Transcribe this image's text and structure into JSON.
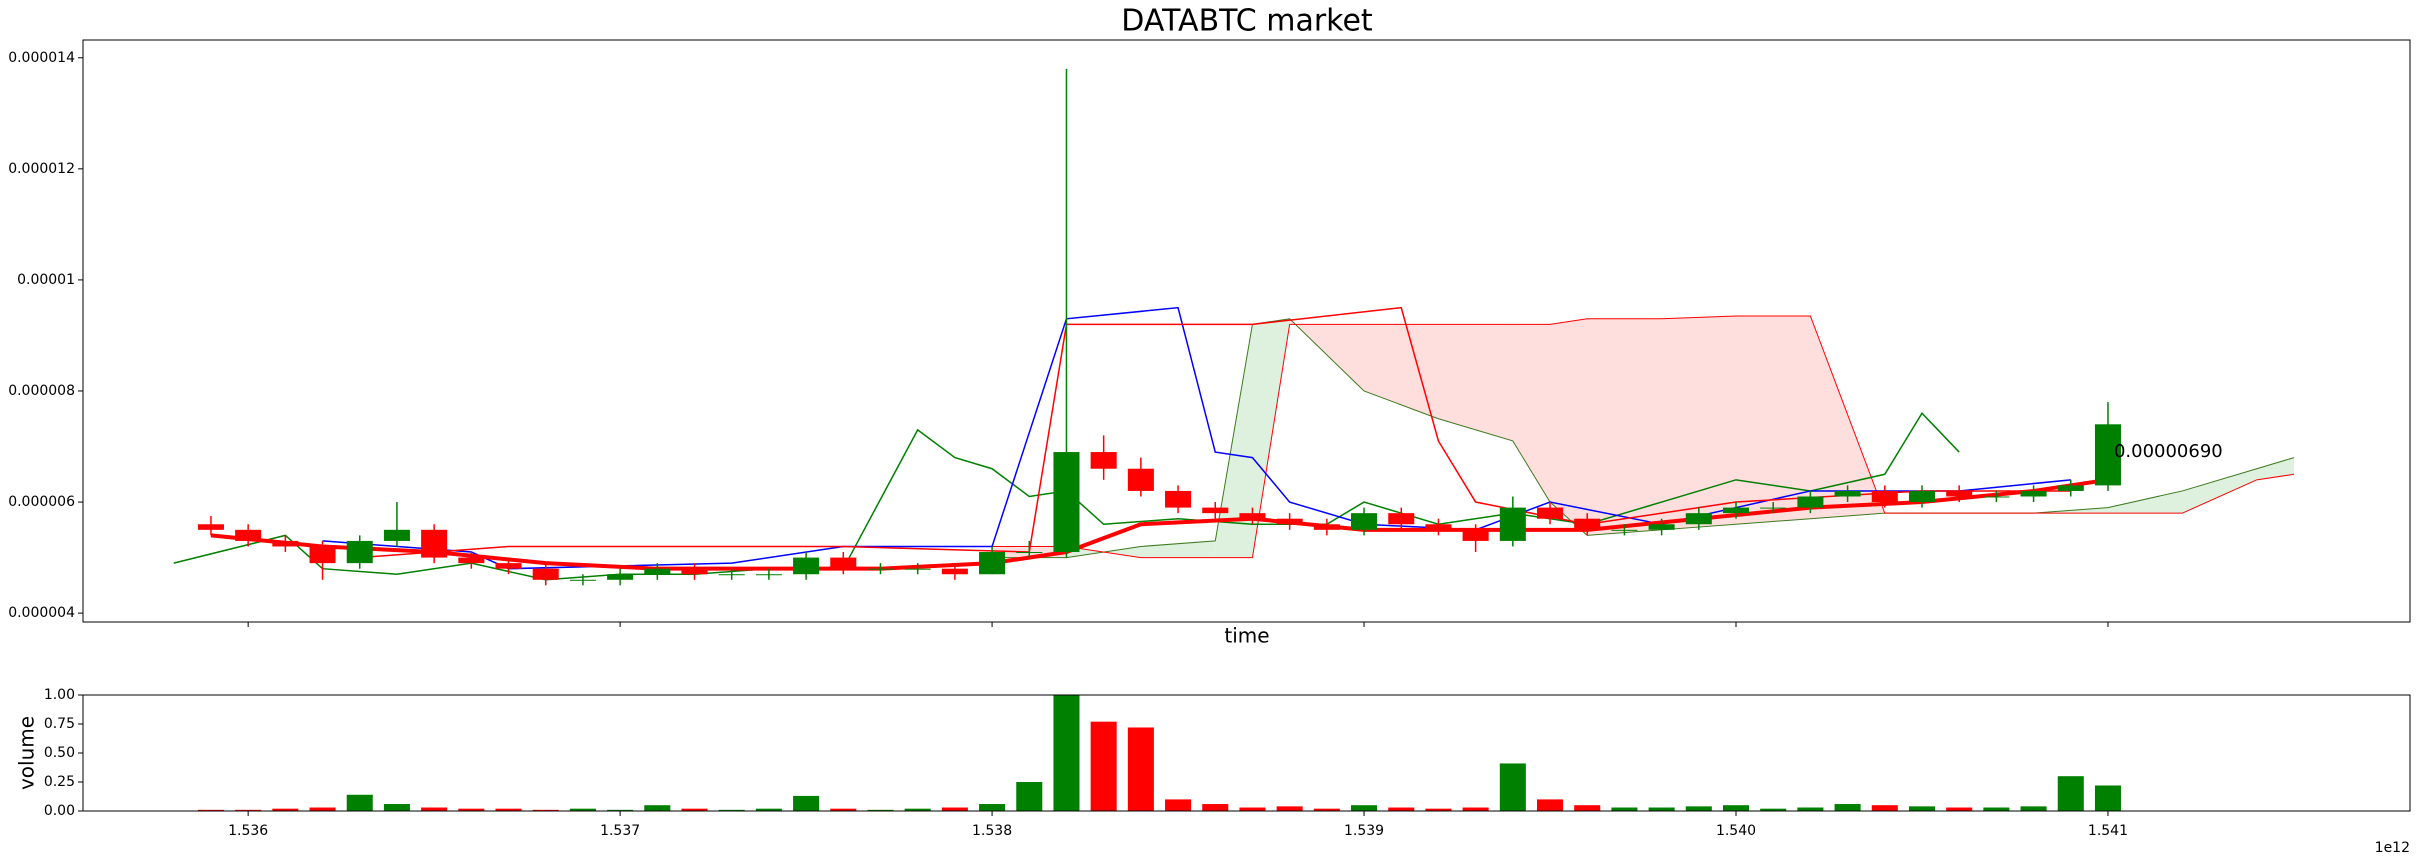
{
  "chart_data": {
    "type": "candlestick",
    "title": "DATABTC market",
    "xlabel": "time",
    "ylabel_volume": "volume",
    "x_offset_label": "1e12",
    "annotation": "0.00000690",
    "up_color": "#008000",
    "down_color": "#ff0000",
    "xlim": [
      1.535556,
      1.541812
    ],
    "xticks": [
      1.536,
      1.537,
      1.538,
      1.539,
      {
        "value": 1.54,
        "label": "1.540"
      },
      1.541
    ],
    "ylim": [
      3.84e-06,
      1.432e-05
    ],
    "yticks": [
      4e-06,
      6e-06,
      8e-06,
      1e-05,
      1.2e-05,
      1.4e-05
    ],
    "volume_ylim": [
      0,
      1
    ],
    "volume_yticks": [
      {
        "value": 0,
        "label": "0.00"
      },
      {
        "value": 0.25,
        "label": "0.25"
      },
      {
        "value": 0.5,
        "label": "0.50"
      },
      {
        "value": 0.75,
        "label": "0.75"
      },
      {
        "value": 1,
        "label": "1.00"
      }
    ],
    "x": [
      1.5359,
      1.536,
      1.5361,
      1.5362,
      1.5363,
      1.5364,
      1.5365,
      1.5366,
      1.5367,
      1.5368,
      1.5369,
      1.537,
      1.5371,
      1.5372,
      1.5373,
      1.5374,
      1.5375,
      1.5376,
      1.5377,
      1.5378,
      1.5379,
      1.538,
      1.5381,
      1.5382,
      1.5383,
      1.5384,
      1.5385,
      1.5386,
      1.5387,
      1.5388,
      1.5389,
      1.539,
      1.5391,
      1.5392,
      1.5393,
      1.5394,
      1.5395,
      1.5396,
      1.5397,
      1.5398,
      1.5399,
      1.54,
      1.5401,
      1.5402,
      1.5403,
      1.5404,
      1.5405,
      1.5406,
      1.5407,
      1.5408,
      1.5409,
      1.541
    ],
    "open": [
      5.6e-06,
      5.5e-06,
      5.3e-06,
      5.2e-06,
      4.9e-06,
      5.3e-06,
      5.5e-06,
      5e-06,
      4.9e-06,
      4.8e-06,
      4.6e-06,
      4.6e-06,
      4.7e-06,
      4.8e-06,
      4.7e-06,
      4.7e-06,
      4.7e-06,
      5e-06,
      4.8e-06,
      4.8e-06,
      4.8e-06,
      4.7e-06,
      5.1e-06,
      5.1e-06,
      6.9e-06,
      6.6e-06,
      6.2e-06,
      5.9e-06,
      5.8e-06,
      5.7e-06,
      5.6e-06,
      5.5e-06,
      5.8e-06,
      5.6e-06,
      5.5e-06,
      5.3e-06,
      5.9e-06,
      5.7e-06,
      5.5e-06,
      5.5e-06,
      5.6e-06,
      5.8e-06,
      5.9e-06,
      5.9e-06,
      6.1e-06,
      6.2e-06,
      6e-06,
      6.2e-06,
      6.1e-06,
      6.1e-06,
      6.2e-06,
      6.3e-06
    ],
    "high": [
      5.75e-06,
      5.6e-06,
      5.4e-06,
      5.3e-06,
      5.4e-06,
      6e-06,
      5.6e-06,
      5.1e-06,
      5e-06,
      4.9e-06,
      4.7e-06,
      4.8e-06,
      4.9e-06,
      4.9e-06,
      4.8e-06,
      4.8e-06,
      5.1e-06,
      5.1e-06,
      4.9e-06,
      4.9e-06,
      4.9e-06,
      5.2e-06,
      5.3e-06,
      1.38e-05,
      7.2e-06,
      6.8e-06,
      6.3e-06,
      6e-06,
      5.9e-06,
      5.8e-06,
      5.7e-06,
      5.9e-06,
      5.9e-06,
      5.7e-06,
      5.6e-06,
      6.1e-06,
      6e-06,
      5.8e-06,
      5.6e-06,
      5.7e-06,
      5.9e-06,
      6e-06,
      6e-06,
      6.2e-06,
      6.3e-06,
      6.3e-06,
      6.3e-06,
      6.3e-06,
      6.2e-06,
      6.3e-06,
      6.4e-06,
      7.8e-06
    ],
    "low": [
      5.4e-06,
      5.2e-06,
      5.1e-06,
      4.6e-06,
      4.8e-06,
      5.2e-06,
      4.9e-06,
      4.8e-06,
      4.7e-06,
      4.5e-06,
      4.5e-06,
      4.5e-06,
      4.6e-06,
      4.6e-06,
      4.6e-06,
      4.6e-06,
      4.6e-06,
      4.7e-06,
      4.7e-06,
      4.7e-06,
      4.6e-06,
      4.7e-06,
      5e-06,
      5e-06,
      6.4e-06,
      6.1e-06,
      5.8e-06,
      5.7e-06,
      5.6e-06,
      5.5e-06,
      5.4e-06,
      5.4e-06,
      5.5e-06,
      5.4e-06,
      5.1e-06,
      5.2e-06,
      5.6e-06,
      5.4e-06,
      5.4e-06,
      5.4e-06,
      5.5e-06,
      5.7e-06,
      5.8e-06,
      5.8e-06,
      6e-06,
      5.9e-06,
      5.9e-06,
      6e-06,
      6e-06,
      6e-06,
      6.1e-06,
      6.2e-06
    ],
    "close": [
      5.5e-06,
      5.3e-06,
      5.2e-06,
      4.9e-06,
      5.3e-06,
      5.5e-06,
      5e-06,
      4.9e-06,
      4.8e-06,
      4.6e-06,
      4.6e-06,
      4.7e-06,
      4.8e-06,
      4.7e-06,
      4.7e-06,
      4.7e-06,
      5e-06,
      4.8e-06,
      4.8e-06,
      4.8e-06,
      4.7e-06,
      5.1e-06,
      5.1e-06,
      6.9e-06,
      6.6e-06,
      6.2e-06,
      5.9e-06,
      5.8e-06,
      5.7e-06,
      5.6e-06,
      5.5e-06,
      5.8e-06,
      5.6e-06,
      5.5e-06,
      5.3e-06,
      5.9e-06,
      5.7e-06,
      5.5e-06,
      5.5e-06,
      5.6e-06,
      5.8e-06,
      5.9e-06,
      5.9e-06,
      6.1e-06,
      6.2e-06,
      6e-06,
      6.2e-06,
      6.1e-06,
      6.1e-06,
      6.2e-06,
      6.3e-06,
      7.4e-06
    ],
    "volume": [
      0.01,
      0.01,
      0.02,
      0.03,
      0.14,
      0.06,
      0.03,
      0.02,
      0.02,
      0.01,
      0.02,
      0.01,
      0.05,
      0.02,
      0.01,
      0.02,
      0.13,
      0.02,
      0.01,
      0.02,
      0.03,
      0.06,
      0.25,
      1.0,
      0.77,
      0.72,
      0.1,
      0.06,
      0.03,
      0.04,
      0.02,
      0.05,
      0.03,
      0.02,
      0.03,
      0.41,
      0.1,
      0.05,
      0.03,
      0.03,
      0.04,
      0.05,
      0.02,
      0.03,
      0.06,
      0.05,
      0.04,
      0.03,
      0.03,
      0.04,
      0.3,
      0.22
    ],
    "series": [
      {
        "color": "#008000",
        "x": [
          1.5358,
          1.5361,
          1.5362,
          1.5364,
          1.5366,
          1.5368,
          1.537,
          1.5372,
          1.5374,
          1.5376,
          1.5378,
          1.5379,
          1.538,
          1.5381,
          1.5382,
          1.5383,
          1.5385,
          1.5387,
          1.5389,
          1.539,
          1.5392,
          1.5394,
          1.5396,
          1.5398,
          1.54,
          1.5402,
          1.5404,
          1.5405,
          1.5406
        ],
        "values": [
          4.9e-06,
          5.4e-06,
          4.8e-06,
          4.7e-06,
          4.9e-06,
          4.6e-06,
          4.7e-06,
          4.7e-06,
          4.8e-06,
          4.8e-06,
          7.3e-06,
          6.8e-06,
          6.6e-06,
          6.1e-06,
          6.2e-06,
          5.6e-06,
          5.7e-06,
          5.6e-06,
          5.6e-06,
          6e-06,
          5.6e-06,
          5.8e-06,
          5.6e-06,
          6e-06,
          6.4e-06,
          6.2e-06,
          6.5e-06,
          7.6e-06,
          6.9e-06
        ]
      },
      {
        "color": "#0000ff",
        "x": [
          1.5362,
          1.5366,
          1.5367,
          1.5373,
          1.5376,
          1.538,
          1.5382,
          1.5385,
          1.5386,
          1.5387,
          1.5388,
          1.539,
          1.5393,
          1.5395,
          1.5398,
          1.5402,
          1.5406,
          1.5409
        ],
        "values": [
          5.3e-06,
          5.1e-06,
          4.8e-06,
          4.9e-06,
          5.2e-06,
          5.2e-06,
          9.3e-06,
          9.5e-06,
          6.9e-06,
          6.8e-06,
          6e-06,
          5.6e-06,
          5.5e-06,
          6e-06,
          5.6e-06,
          6.2e-06,
          6.2e-06,
          6.4e-06
        ]
      },
      {
        "color": "#ff0000",
        "x": [
          1.5363,
          1.5367,
          1.5371,
          1.5376,
          1.5381,
          1.5382,
          1.5387,
          1.5391,
          1.5392,
          1.5393,
          1.5396,
          1.54,
          1.5405,
          1.5409
        ],
        "values": [
          5e-06,
          5.2e-06,
          5.2e-06,
          5.2e-06,
          5.1e-06,
          9.2e-06,
          9.2e-06,
          9.5e-06,
          7.1e-06,
          6e-06,
          5.6e-06,
          6e-06,
          6.2e-06,
          6.2e-06
        ]
      },
      {
        "color": "#ff0000",
        "width": 4,
        "x": [
          1.5359,
          1.5362,
          1.5365,
          1.5368,
          1.5371,
          1.5374,
          1.5377,
          1.538,
          1.5382,
          1.5384,
          1.5387,
          1.539,
          1.5393,
          1.5396,
          1.5399,
          1.5402,
          1.5405,
          1.5408,
          1.541
        ],
        "values": [
          5.4e-06,
          5.2e-06,
          5.1e-06,
          4.9e-06,
          4.8e-06,
          4.8e-06,
          4.8e-06,
          4.9e-06,
          5.1e-06,
          5.6e-06,
          5.7e-06,
          5.5e-06,
          5.5e-06,
          5.5e-06,
          5.7e-06,
          5.9e-06,
          6e-06,
          6.2e-06,
          6.4e-06
        ]
      }
    ],
    "cloud": {
      "span_a_color": "#3c7a1e",
      "span_b_color": "#ff0000",
      "up_fill": "#c8e6c8",
      "down_fill": "#ffc8c8",
      "x": [
        1.538,
        1.5382,
        1.5384,
        1.5386,
        1.5387,
        1.5388,
        1.539,
        1.5392,
        1.5394,
        1.5395,
        1.5396,
        1.5398,
        1.54,
        1.5402,
        1.5404,
        1.5406,
        1.5408,
        1.541,
        1.5412,
        1.5414,
        1.5415
      ],
      "span_a": [
        5e-06,
        5e-06,
        5.2e-06,
        5.3e-06,
        9.2e-06,
        9.3e-06,
        8e-06,
        7.5e-06,
        7.1e-06,
        6e-06,
        5.4e-06,
        5.5e-06,
        5.6e-06,
        5.7e-06,
        5.8e-06,
        5.8e-06,
        5.8e-06,
        5.9e-06,
        6.2e-06,
        6.6e-06,
        6.8e-06
      ],
      "span_b": [
        5.2e-06,
        5.2e-06,
        5e-06,
        5e-06,
        5e-06,
        9.2e-06,
        9.2e-06,
        9.2e-06,
        9.2e-06,
        9.2e-06,
        9.3e-06,
        9.3e-06,
        9.35e-06,
        9.35e-06,
        5.8e-06,
        5.8e-06,
        5.8e-06,
        5.8e-06,
        5.8e-06,
        6.4e-06,
        6.5e-06
      ]
    }
  }
}
